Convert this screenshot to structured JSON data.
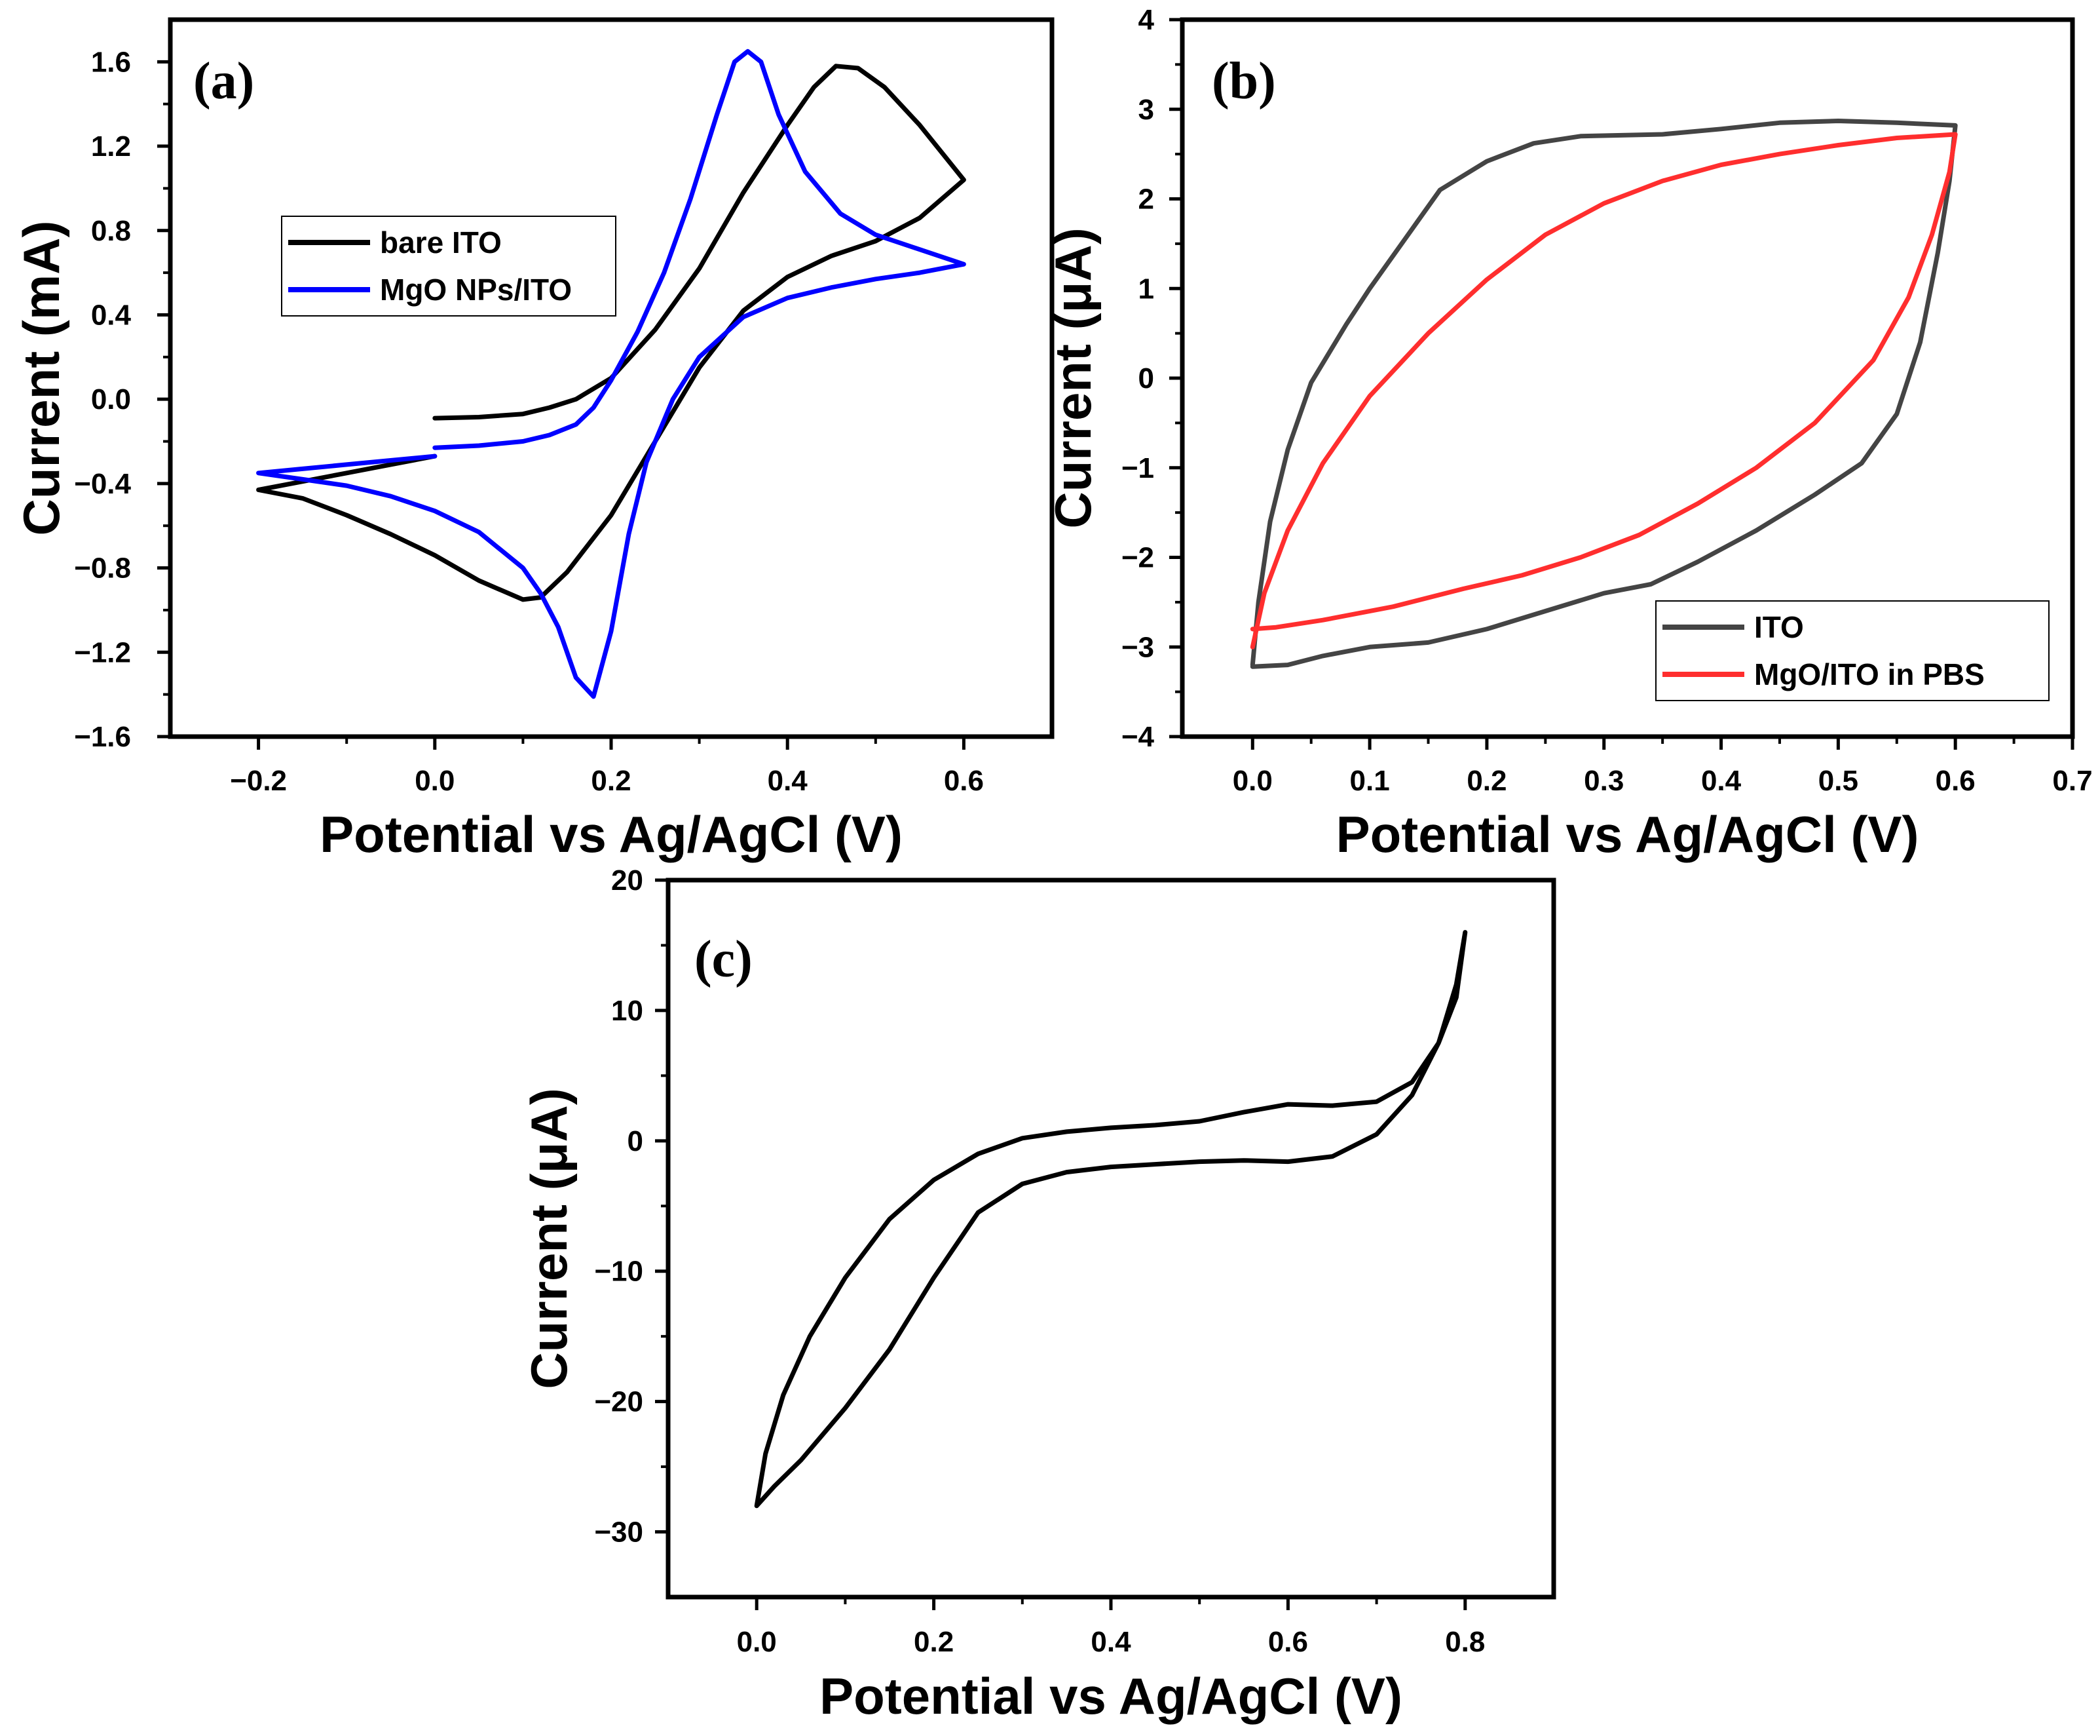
{
  "figure_title": "",
  "chart_data": [
    {
      "panel": "(a)",
      "type": "line",
      "title": "",
      "xlabel": "Potential vs Ag/AgCl (V)",
      "ylabel": "Current (mA)",
      "xlim": [
        -0.3,
        0.7
      ],
      "ylim": [
        -1.6,
        1.8
      ],
      "xticks": [
        -0.2,
        0.0,
        0.2,
        0.4,
        0.6
      ],
      "xtick_labels": [
        "−0.2",
        "0.0",
        "0.2",
        "0.4",
        "0.6"
      ],
      "yticks": [
        -1.6,
        -1.2,
        -0.8,
        -0.4,
        0.0,
        0.4,
        0.8,
        1.2,
        1.6
      ],
      "ytick_labels": [
        "−1.6",
        "−1.2",
        "−0.8",
        "−0.4",
        "0.0",
        "0.4",
        "0.8",
        "1.2",
        "1.6"
      ],
      "grid": false,
      "legend_position": "center-left",
      "series": [
        {
          "name": "bare ITO",
          "color": "#000000",
          "points": [
            [
              0.0,
              -0.09
            ],
            [
              0.05,
              -0.085
            ],
            [
              0.1,
              -0.07
            ],
            [
              0.13,
              -0.04
            ],
            [
              0.16,
              0.0
            ],
            [
              0.2,
              0.1
            ],
            [
              0.25,
              0.33
            ],
            [
              0.3,
              0.62
            ],
            [
              0.35,
              0.98
            ],
            [
              0.4,
              1.3
            ],
            [
              0.43,
              1.48
            ],
            [
              0.455,
              1.58
            ],
            [
              0.48,
              1.57
            ],
            [
              0.51,
              1.48
            ],
            [
              0.55,
              1.3
            ],
            [
              0.6,
              1.04
            ],
            [
              0.55,
              0.86
            ],
            [
              0.5,
              0.75
            ],
            [
              0.45,
              0.68
            ],
            [
              0.4,
              0.58
            ],
            [
              0.35,
              0.42
            ],
            [
              0.3,
              0.15
            ],
            [
              0.25,
              -0.2
            ],
            [
              0.2,
              -0.55
            ],
            [
              0.15,
              -0.82
            ],
            [
              0.12,
              -0.94
            ],
            [
              0.1,
              -0.95
            ],
            [
              0.05,
              -0.86
            ],
            [
              0.0,
              -0.74
            ],
            [
              -0.05,
              -0.64
            ],
            [
              -0.1,
              -0.55
            ],
            [
              -0.15,
              -0.47
            ],
            [
              -0.2,
              -0.43
            ],
            [
              -0.15,
              -0.39
            ],
            [
              -0.1,
              -0.35
            ],
            [
              -0.05,
              -0.31
            ],
            [
              0.0,
              -0.27
            ]
          ]
        },
        {
          "name": "MgO NPs/ITO",
          "color": "#0000ff",
          "points": [
            [
              0.0,
              -0.23
            ],
            [
              0.05,
              -0.22
            ],
            [
              0.1,
              -0.2
            ],
            [
              0.13,
              -0.17
            ],
            [
              0.16,
              -0.12
            ],
            [
              0.18,
              -0.04
            ],
            [
              0.2,
              0.09
            ],
            [
              0.23,
              0.32
            ],
            [
              0.26,
              0.6
            ],
            [
              0.29,
              0.95
            ],
            [
              0.32,
              1.35
            ],
            [
              0.34,
              1.6
            ],
            [
              0.355,
              1.65
            ],
            [
              0.37,
              1.6
            ],
            [
              0.39,
              1.35
            ],
            [
              0.42,
              1.08
            ],
            [
              0.46,
              0.88
            ],
            [
              0.5,
              0.78
            ],
            [
              0.55,
              0.71
            ],
            [
              0.6,
              0.64
            ],
            [
              0.55,
              0.6
            ],
            [
              0.5,
              0.57
            ],
            [
              0.45,
              0.53
            ],
            [
              0.4,
              0.48
            ],
            [
              0.35,
              0.39
            ],
            [
              0.3,
              0.2
            ],
            [
              0.27,
              0.0
            ],
            [
              0.24,
              -0.3
            ],
            [
              0.22,
              -0.64
            ],
            [
              0.2,
              -1.1
            ],
            [
              0.18,
              -1.41
            ],
            [
              0.16,
              -1.32
            ],
            [
              0.14,
              -1.08
            ],
            [
              0.12,
              -0.92
            ],
            [
              0.1,
              -0.8
            ],
            [
              0.05,
              -0.63
            ],
            [
              0.0,
              -0.53
            ],
            [
              -0.05,
              -0.46
            ],
            [
              -0.1,
              -0.41
            ],
            [
              -0.15,
              -0.38
            ],
            [
              -0.2,
              -0.35
            ],
            [
              -0.15,
              -0.33
            ],
            [
              -0.1,
              -0.31
            ],
            [
              -0.05,
              -0.29
            ],
            [
              0.0,
              -0.27
            ]
          ]
        }
      ]
    },
    {
      "panel": "(b)",
      "type": "line",
      "title": "",
      "xlabel": "Potential vs Ag/AgCl (V)",
      "ylabel": "Current (μA)",
      "xlim": [
        -0.06,
        0.7
      ],
      "ylim": [
        -4,
        4
      ],
      "xticks": [
        0.0,
        0.1,
        0.2,
        0.3,
        0.4,
        0.5,
        0.6,
        0.7
      ],
      "xtick_labels": [
        "0.0",
        "0.1",
        "0.2",
        "0.3",
        "0.4",
        "0.5",
        "0.6",
        "0.7"
      ],
      "yticks": [
        -4,
        -3,
        -2,
        -1,
        0,
        1,
        2,
        3,
        4
      ],
      "ytick_labels": [
        "−4",
        "−3",
        "−2",
        "−1",
        "0",
        "1",
        "2",
        "3",
        "4"
      ],
      "grid": false,
      "legend_position": "bottom-right",
      "series": [
        {
          "name": "ITO",
          "color": "#444444",
          "points": [
            [
              0.0,
              -3.2
            ],
            [
              0.005,
              -2.5
            ],
            [
              0.015,
              -1.6
            ],
            [
              0.03,
              -0.8
            ],
            [
              0.05,
              -0.05
            ],
            [
              0.08,
              0.6
            ],
            [
              0.1,
              1.0
            ],
            [
              0.13,
              1.55
            ],
            [
              0.16,
              2.1
            ],
            [
              0.2,
              2.42
            ],
            [
              0.24,
              2.62
            ],
            [
              0.28,
              2.7
            ],
            [
              0.35,
              2.72
            ],
            [
              0.4,
              2.78
            ],
            [
              0.45,
              2.85
            ],
            [
              0.5,
              2.87
            ],
            [
              0.55,
              2.85
            ],
            [
              0.6,
              2.82
            ],
            [
              0.595,
              2.2
            ],
            [
              0.585,
              1.4
            ],
            [
              0.57,
              0.4
            ],
            [
              0.55,
              -0.4
            ],
            [
              0.52,
              -0.95
            ],
            [
              0.48,
              -1.3
            ],
            [
              0.43,
              -1.7
            ],
            [
              0.38,
              -2.05
            ],
            [
              0.34,
              -2.3
            ],
            [
              0.3,
              -2.4
            ],
            [
              0.25,
              -2.6
            ],
            [
              0.2,
              -2.8
            ],
            [
              0.15,
              -2.95
            ],
            [
              0.1,
              -3.0
            ],
            [
              0.06,
              -3.1
            ],
            [
              0.03,
              -3.2
            ],
            [
              0.0,
              -3.22
            ]
          ]
        },
        {
          "name": "MgO/ITO in PBS",
          "color": "#ff2e2e",
          "points": [
            [
              0.0,
              -3.0
            ],
            [
              0.01,
              -2.4
            ],
            [
              0.03,
              -1.7
            ],
            [
              0.06,
              -0.95
            ],
            [
              0.1,
              -0.2
            ],
            [
              0.15,
              0.5
            ],
            [
              0.2,
              1.1
            ],
            [
              0.25,
              1.6
            ],
            [
              0.3,
              1.95
            ],
            [
              0.35,
              2.2
            ],
            [
              0.4,
              2.38
            ],
            [
              0.45,
              2.5
            ],
            [
              0.5,
              2.6
            ],
            [
              0.55,
              2.68
            ],
            [
              0.6,
              2.72
            ],
            [
              0.595,
              2.3
            ],
            [
              0.58,
              1.6
            ],
            [
              0.56,
              0.9
            ],
            [
              0.53,
              0.2
            ],
            [
              0.48,
              -0.5
            ],
            [
              0.43,
              -1.0
            ],
            [
              0.38,
              -1.4
            ],
            [
              0.33,
              -1.75
            ],
            [
              0.28,
              -2.0
            ],
            [
              0.23,
              -2.2
            ],
            [
              0.18,
              -2.35
            ],
            [
              0.12,
              -2.55
            ],
            [
              0.06,
              -2.7
            ],
            [
              0.02,
              -2.78
            ],
            [
              0.0,
              -2.8
            ]
          ]
        }
      ]
    },
    {
      "panel": "(c)",
      "type": "line",
      "title": "",
      "xlabel": "Potential vs Ag/AgCl (V)",
      "ylabel": "Current (μA)",
      "xlim": [
        -0.1,
        0.9
      ],
      "ylim": [
        -35,
        20
      ],
      "xticks": [
        0.0,
        0.2,
        0.4,
        0.6,
        0.8
      ],
      "xtick_labels": [
        "0.0",
        "0.2",
        "0.4",
        "0.6",
        "0.8"
      ],
      "yticks": [
        -30,
        -20,
        -10,
        0,
        10,
        20
      ],
      "ytick_labels": [
        "−30",
        "−20",
        "−10",
        "0",
        "10",
        "20"
      ],
      "grid": false,
      "legend_position": "none",
      "series": [
        {
          "name": "",
          "color": "#000000",
          "points": [
            [
              0.0,
              -28
            ],
            [
              0.01,
              -24
            ],
            [
              0.03,
              -19.5
            ],
            [
              0.06,
              -15
            ],
            [
              0.1,
              -10.5
            ],
            [
              0.15,
              -6
            ],
            [
              0.2,
              -3
            ],
            [
              0.25,
              -1
            ],
            [
              0.3,
              0.2
            ],
            [
              0.35,
              0.7
            ],
            [
              0.4,
              1.0
            ],
            [
              0.45,
              1.2
            ],
            [
              0.5,
              1.5
            ],
            [
              0.55,
              2.2
            ],
            [
              0.6,
              2.8
            ],
            [
              0.65,
              2.7
            ],
            [
              0.7,
              3.0
            ],
            [
              0.74,
              4.5
            ],
            [
              0.77,
              7.5
            ],
            [
              0.79,
              11
            ],
            [
              0.8,
              16
            ],
            [
              0.79,
              12
            ],
            [
              0.77,
              7.5
            ],
            [
              0.74,
              3.5
            ],
            [
              0.7,
              0.5
            ],
            [
              0.65,
              -1.2
            ],
            [
              0.6,
              -1.6
            ],
            [
              0.55,
              -1.5
            ],
            [
              0.5,
              -1.6
            ],
            [
              0.45,
              -1.8
            ],
            [
              0.4,
              -2.0
            ],
            [
              0.35,
              -2.4
            ],
            [
              0.3,
              -3.3
            ],
            [
              0.25,
              -5.5
            ],
            [
              0.2,
              -10.5
            ],
            [
              0.15,
              -16
            ],
            [
              0.1,
              -20.5
            ],
            [
              0.05,
              -24.5
            ],
            [
              0.02,
              -26.5
            ],
            [
              0.0,
              -28
            ]
          ]
        }
      ]
    }
  ]
}
